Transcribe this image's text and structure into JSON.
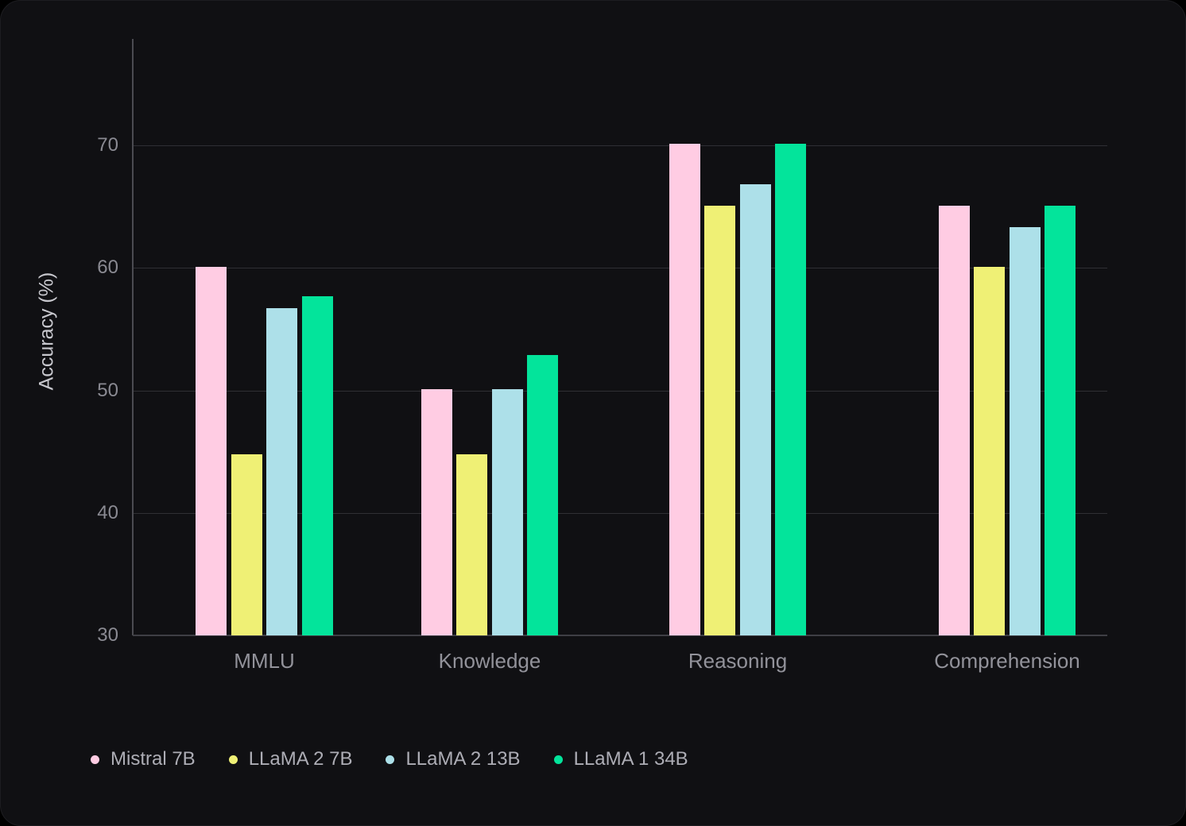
{
  "chart_data": {
    "type": "bar",
    "title": "",
    "ylabel": "Accuracy (%)",
    "xlabel": "",
    "categories": [
      "MMLU",
      "Knowledge",
      "Reasoning",
      "Comprehension"
    ],
    "series": [
      {
        "name": "Mistral 7B",
        "color": "#ffcce3",
        "values": [
          60.1,
          50.1,
          70.1,
          65.1
        ]
      },
      {
        "name": "LLaMA 2 7B",
        "color": "#eff075",
        "values": [
          44.8,
          44.8,
          65.1,
          60.1
        ]
      },
      {
        "name": "LLaMA 2 13B",
        "color": "#ade0e9",
        "values": [
          56.7,
          50.1,
          66.8,
          63.3
        ]
      },
      {
        "name": "LLaMA 1 34B",
        "color": "#03e49b",
        "values": [
          57.7,
          52.9,
          70.1,
          65.1
        ]
      }
    ],
    "yticks": [
      30,
      40,
      50,
      60,
      70
    ],
    "ylim": [
      30,
      78.7
    ],
    "grid": true,
    "legend_position": "bottom-left",
    "colors": {
      "card_background": "#101013",
      "gridline": "#2f2f34",
      "axis": "#4b4b51",
      "tick_text": "#8a8a92",
      "category_text": "#92929a",
      "legend_text": "#adadb5",
      "axis_title_text": "#c7c7cd"
    }
  }
}
